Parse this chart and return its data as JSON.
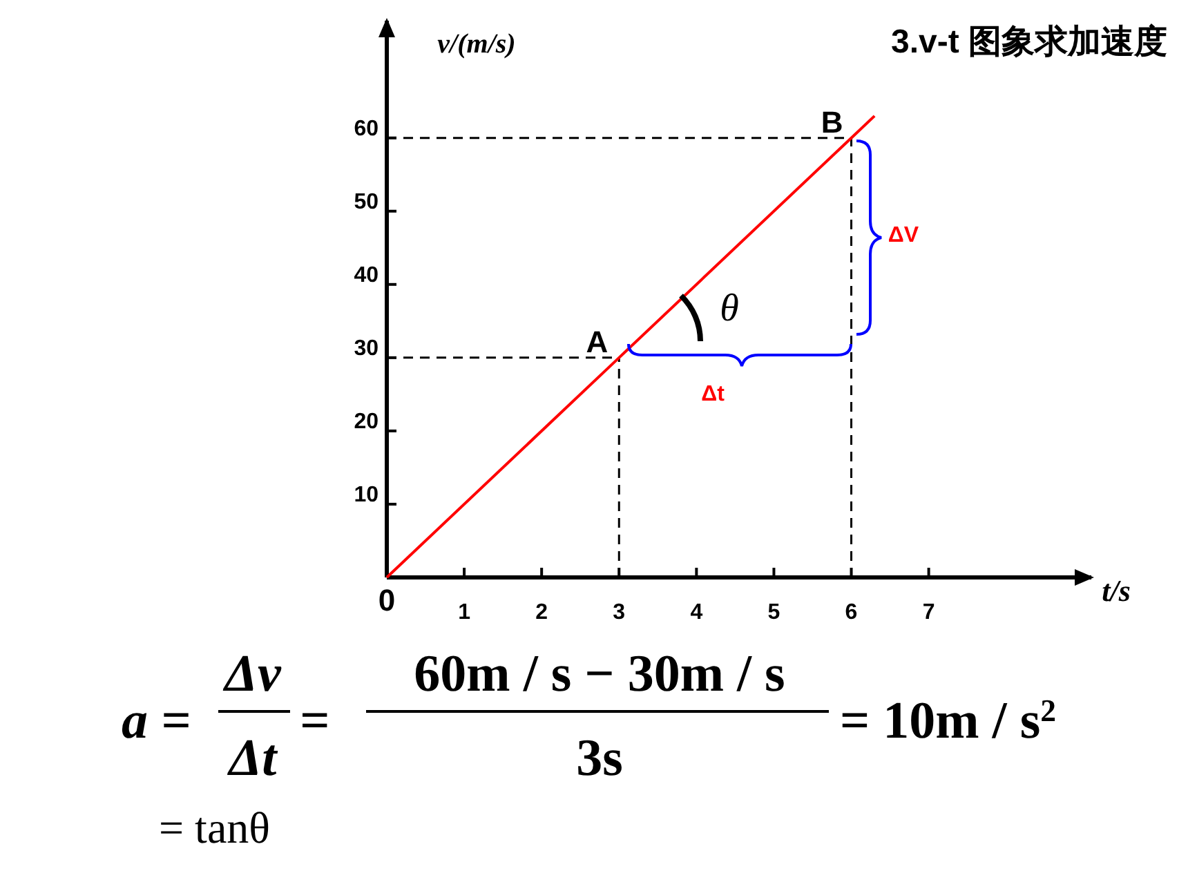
{
  "chart_data": {
    "type": "line",
    "title": "3.v-t 图象求加速度",
    "xlabel": "t/s",
    "ylabel": "v/(m/s)",
    "x": [
      0,
      3,
      6,
      6.3
    ],
    "series": [
      {
        "color": "#ff0000",
        "values": [
          0,
          30,
          60,
          63
        ]
      }
    ],
    "xlim": [
      0,
      9.1
    ],
    "ylim": [
      0,
      76
    ],
    "xticks": [
      0,
      1,
      2,
      3,
      4,
      5,
      6,
      7
    ],
    "yticks": [
      10,
      20,
      30,
      40,
      50,
      60
    ],
    "ref_lines": [
      {
        "axis": "y",
        "value": 30,
        "line_style": "dashed",
        "color": "#000000"
      },
      {
        "axis": "y",
        "value": 60,
        "line_style": "dashed",
        "color": "#000000"
      },
      {
        "axis": "x",
        "value": 3,
        "line_style": "dashed",
        "color": "#000000"
      },
      {
        "axis": "x",
        "value": 6,
        "line_style": "dashed",
        "color": "#000000"
      }
    ],
    "annotations": [
      {
        "text": "A",
        "x": 3,
        "y": 30
      },
      {
        "text": "B",
        "x": 6,
        "y": 60
      },
      "θ",
      "ΔV",
      "Δt",
      "a =",
      "Δv",
      "Δt",
      "=",
      "60m / s − 30m / s",
      "3s",
      "= 10m / s$^{2}$",
      "= tanθ"
    ],
    "grid": false,
    "marker": "none",
    "line_style": "solid"
  }
}
